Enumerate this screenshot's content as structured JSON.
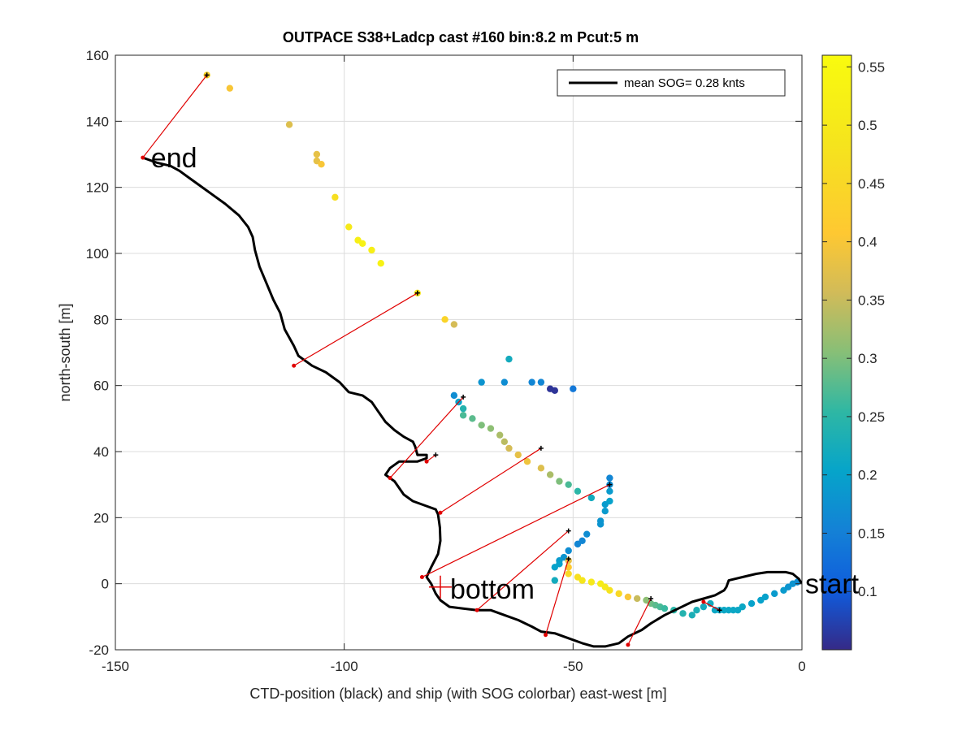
{
  "chart_data": {
    "type": "scatter",
    "title": "OUTPACE S38+Ladcp cast #160 bin:8.2 m  Pcut:5 m",
    "xlabel": "CTD-position (black) and ship (with SOG colorbar) east-west [m]",
    "ylabel": "north-south [m]",
    "xlim": [
      -150,
      0
    ],
    "ylim": [
      -20,
      160
    ],
    "xticks": [
      -150,
      -100,
      -50,
      0
    ],
    "yticks": [
      -20,
      0,
      20,
      40,
      60,
      80,
      100,
      120,
      140,
      160
    ],
    "xtick_labels": [
      "-150",
      "-100",
      "-50",
      "0"
    ],
    "ytick_labels": [
      "-20",
      "0",
      "20",
      "40",
      "60",
      "80",
      "100",
      "120",
      "140",
      "160"
    ],
    "grid": true,
    "legend": {
      "placement": "top-right",
      "entries": [
        "mean SOG=  0.28 knts"
      ]
    },
    "colorbar": {
      "colormap": "parula",
      "range": [
        0.05,
        0.56
      ],
      "ticks": [
        0.1,
        0.15,
        0.2,
        0.25,
        0.3,
        0.35,
        0.4,
        0.45,
        0.5,
        0.55
      ],
      "tick_labels": [
        "0.1",
        "0.15",
        "0.2",
        "0.25",
        "0.3",
        "0.35",
        "0.4",
        "0.45",
        "0.5",
        "0.55"
      ]
    },
    "annotations": [
      {
        "text": "end",
        "x": -144,
        "y": 129
      },
      {
        "text": "bottom",
        "x": -79,
        "y": -2
      },
      {
        "text": "start",
        "x": 0,
        "y": 0
      }
    ],
    "ctd_track": {
      "name": "CTD-position (black)",
      "x": [
        0,
        -0.7,
        -2,
        -3.5,
        -5,
        -7.5,
        -10,
        -13,
        -16,
        -16.5,
        -17,
        -19,
        -21.5,
        -24,
        -27,
        -30,
        -33,
        -35,
        -38,
        -40,
        -43,
        -45.5,
        -48,
        -51,
        -54,
        -57,
        -59,
        -62,
        -65,
        -68,
        -71,
        -74,
        -77,
        -79,
        -80,
        -81,
        -82,
        -81,
        -79.5,
        -79,
        -79.1,
        -79.3,
        -79.5,
        -80,
        -82,
        -85,
        -87,
        -89,
        -91,
        -90,
        -88,
        -84,
        -82,
        -82,
        -84,
        -84.5,
        -85,
        -87,
        -89,
        -91,
        -92.5,
        -94,
        -96,
        -99,
        -101,
        -104,
        -107,
        -110,
        -111,
        -113,
        -114,
        -115.5,
        -117,
        -118.5,
        -119.5,
        -120,
        -121,
        -123,
        -126,
        -129,
        -132,
        -134,
        -136,
        -138,
        -141,
        -143,
        -144
      ],
      "y": [
        0,
        1.5,
        3,
        3.5,
        3.5,
        3.5,
        3,
        2,
        1,
        -1,
        -2,
        -3.5,
        -4.5,
        -5.5,
        -7.5,
        -9.5,
        -12,
        -14,
        -16,
        -18,
        -19,
        -19,
        -18,
        -16.5,
        -15,
        -14.5,
        -13,
        -11,
        -9.5,
        -8,
        -8,
        -7.5,
        -7,
        -5,
        -3,
        0,
        2,
        5,
        9,
        13,
        17,
        19,
        21,
        22.5,
        23.5,
        25,
        27,
        31,
        33,
        35,
        37,
        37,
        38,
        39,
        39,
        41.5,
        43,
        44.5,
        46.5,
        49,
        52,
        55,
        57,
        58,
        61,
        64,
        66,
        69,
        72,
        77,
        82,
        86,
        91,
        96,
        101,
        105,
        108,
        111.5,
        115,
        118,
        121,
        123,
        125,
        126.5,
        127.5,
        128.5,
        129
      ]
    },
    "ship_positions": {
      "name": "ship (with SOG colorbar)",
      "x": [
        -130,
        -125,
        -112,
        -106,
        -106,
        -105,
        -102,
        -99,
        -97,
        -96,
        -94,
        -92,
        -84,
        -78,
        -76,
        -64,
        -70,
        -76,
        -75,
        -74,
        -74,
        -72,
        -70,
        -68,
        -66,
        -65,
        -64,
        -62,
        -60,
        -57,
        -55,
        -53,
        -51,
        -49,
        -46,
        -43,
        -42,
        -42,
        -42,
        -42,
        -43,
        -44,
        -44,
        -47,
        -48,
        -49,
        -51,
        -52,
        -53,
        -53,
        -54,
        -54,
        -51,
        -51,
        -51,
        -49,
        -48,
        -46,
        -44,
        -43,
        -42,
        -40,
        -38,
        -36,
        -34,
        -33,
        -32,
        -31,
        -30,
        -28,
        -26,
        -24,
        -23,
        -21.5,
        -20,
        -19,
        -18,
        -17,
        -16,
        -15,
        -14,
        -13,
        -11,
        -9,
        -8,
        -6,
        -4,
        -3,
        -2,
        -1
      ],
      "y": [
        154,
        150,
        139,
        130,
        128,
        127,
        117,
        108,
        104,
        103,
        101,
        97,
        88,
        80,
        78.5,
        68,
        61,
        57,
        55,
        53,
        51,
        50,
        48,
        47,
        45,
        43,
        41,
        39,
        37,
        35,
        33,
        31,
        30,
        28,
        26,
        24,
        32,
        30,
        28,
        25,
        22,
        19,
        18,
        15,
        13,
        12,
        10,
        8,
        7,
        6,
        5,
        1,
        7,
        5,
        3,
        2,
        1,
        0.5,
        0,
        -1,
        -2,
        -3,
        -4,
        -4.5,
        -5,
        -6,
        -6.5,
        -7,
        -7.5,
        -8,
        -9,
        -9.5,
        -8,
        -7,
        -6,
        -8,
        -8,
        -8,
        -8,
        -8,
        -8,
        -7,
        -6,
        -5,
        -4,
        -3,
        -2,
        -1,
        0,
        0.5
      ],
      "sog": [
        0.44,
        0.4,
        0.37,
        0.38,
        0.38,
        0.4,
        0.47,
        0.5,
        0.52,
        0.53,
        0.52,
        0.53,
        0.48,
        0.44,
        0.36,
        0.22,
        0.18,
        0.17,
        0.2,
        0.24,
        0.27,
        0.28,
        0.3,
        0.31,
        0.33,
        0.34,
        0.36,
        0.38,
        0.39,
        0.37,
        0.33,
        0.3,
        0.27,
        0.25,
        0.22,
        0.19,
        0.16,
        0.17,
        0.19,
        0.2,
        0.19,
        0.18,
        0.18,
        0.17,
        0.16,
        0.16,
        0.17,
        0.18,
        0.19,
        0.2,
        0.2,
        0.22,
        0.38,
        0.41,
        0.45,
        0.47,
        0.49,
        0.5,
        0.51,
        0.5,
        0.48,
        0.45,
        0.4,
        0.35,
        0.31,
        0.29,
        0.28,
        0.27,
        0.26,
        0.25,
        0.24,
        0.23,
        0.23,
        0.22,
        0.22,
        0.21,
        0.21,
        0.21,
        0.21,
        0.21,
        0.21,
        0.21,
        0.2,
        0.2,
        0.2,
        0.19,
        0.19,
        0.18,
        0.18,
        0.17
      ],
      "extra_points": [
        {
          "x": -59,
          "y": 61,
          "sog": 0.16
        },
        {
          "x": -57,
          "y": 61,
          "sog": 0.16
        },
        {
          "x": -55,
          "y": 59,
          "sog": 0.06
        },
        {
          "x": -54,
          "y": 58.5,
          "sog": 0.06
        },
        {
          "x": -50,
          "y": 59,
          "sog": 0.14
        },
        {
          "x": -65,
          "y": 61,
          "sog": 0.17
        }
      ]
    },
    "connections": {
      "name": "ship-CTD connections (red)",
      "pairs": [
        {
          "ship": [
            -130,
            154
          ],
          "ctd": [
            -144,
            129
          ]
        },
        {
          "ship": [
            -84,
            88
          ],
          "ctd": [
            -111,
            66
          ]
        },
        {
          "ship": [
            -74,
            56.5
          ],
          "ctd": [
            -90,
            32
          ]
        },
        {
          "ship": [
            -57,
            41
          ],
          "ctd": [
            -79,
            21.5
          ]
        },
        {
          "ship": [
            -42,
            30
          ],
          "ctd": [
            -83,
            2
          ]
        },
        {
          "ship": [
            -51,
            16
          ],
          "ctd": [
            -71,
            -8
          ]
        },
        {
          "ship": [
            -51,
            7.5
          ],
          "ctd": [
            -56,
            -15.5
          ]
        },
        {
          "ship": [
            -33,
            -4.5
          ],
          "ctd": [
            -38,
            -18.5
          ]
        },
        {
          "ship": [
            -18,
            -8
          ],
          "ctd": [
            -21.5,
            -5.5
          ]
        },
        {
          "ship": [
            -80,
            39
          ],
          "ctd": [
            -82,
            37
          ]
        }
      ]
    }
  }
}
